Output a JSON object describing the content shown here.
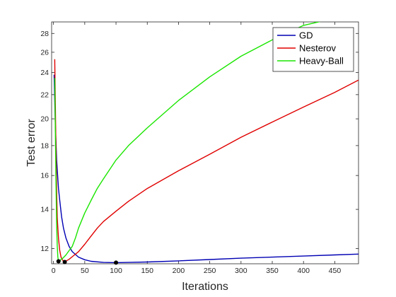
{
  "chart_data": {
    "type": "line",
    "title": "",
    "xlabel": "Iterations",
    "ylabel": "Test error",
    "xlim": [
      -3,
      488
    ],
    "ylim": [
      11.3,
      29.3
    ],
    "y_scale": "log",
    "grid": false,
    "legend_position": "top-right",
    "xticks": [
      "0",
      "50",
      "100",
      "150",
      "200",
      "250",
      "300",
      "350",
      "400",
      "450"
    ],
    "yticks": [
      "12",
      "14",
      "16",
      "18",
      "20",
      "22",
      "24",
      "26",
      "28"
    ],
    "series": [
      {
        "name": "GD",
        "color": "#0000b4",
        "x": [
          1,
          3,
          5,
          8,
          10,
          13,
          16,
          20,
          25,
          30,
          40,
          50,
          60,
          80,
          100,
          120,
          150,
          200,
          250,
          300,
          350,
          400,
          450,
          488
        ],
        "y": [
          23.8,
          19.5,
          17.0,
          15.2,
          14.5,
          13.6,
          13.0,
          12.5,
          12.1,
          11.85,
          11.6,
          11.48,
          11.41,
          11.36,
          11.35,
          11.36,
          11.38,
          11.43,
          11.49,
          11.55,
          11.6,
          11.65,
          11.7,
          11.74
        ]
      },
      {
        "name": "Nesterov",
        "color": "#e00000",
        "x": [
          2,
          3,
          4,
          5,
          6,
          8,
          10,
          12,
          15,
          18,
          20,
          25,
          30,
          40,
          50,
          60,
          70,
          80,
          100,
          120,
          150,
          200,
          250,
          300,
          350,
          400,
          450,
          488
        ],
        "y": [
          25.3,
          21.0,
          17.5,
          15.0,
          13.5,
          12.5,
          11.9,
          11.6,
          11.45,
          11.38,
          11.42,
          11.5,
          11.62,
          11.85,
          12.2,
          12.6,
          13.0,
          13.35,
          13.9,
          14.45,
          15.2,
          16.3,
          17.4,
          18.6,
          19.75,
          20.95,
          22.2,
          23.3
        ]
      },
      {
        "name": "Heavy-Ball",
        "color": "#1ae600",
        "x": [
          2,
          3,
          4,
          5,
          6,
          7,
          8,
          10,
          12,
          15,
          20,
          25,
          30,
          35,
          40,
          50,
          60,
          70,
          80,
          100,
          120,
          150,
          200,
          250,
          300,
          350,
          400,
          430
        ],
        "y": [
          23.5,
          19.0,
          15.5,
          13.2,
          12.1,
          11.6,
          11.42,
          11.4,
          11.5,
          11.55,
          11.7,
          11.9,
          12.1,
          12.5,
          13.0,
          13.8,
          14.5,
          15.2,
          15.8,
          17.0,
          18.0,
          19.3,
          21.5,
          23.6,
          25.6,
          27.3,
          28.9,
          29.4
        ]
      }
    ],
    "markers": [
      {
        "series": "Heavy-Ball",
        "x": 8,
        "y": 11.41
      },
      {
        "series": "Nesterov",
        "x": 18,
        "y": 11.38
      },
      {
        "series": "GD",
        "x": 100,
        "y": 11.35
      }
    ]
  }
}
